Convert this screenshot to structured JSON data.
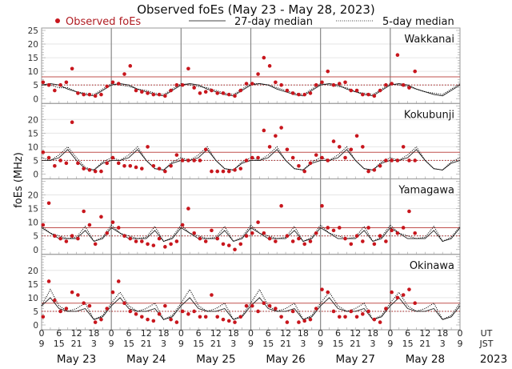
{
  "chart_data": {
    "type": "scatter",
    "title": "Observed foEs (May 23 - May 28, 2023)",
    "ylabel": "foEs (MHz)",
    "ylim": [
      0,
      25
    ],
    "yticks": [
      0,
      5,
      10,
      15,
      20,
      25
    ],
    "legend": {
      "placement": "top",
      "observed": "Observed foEs",
      "median27": "27-day median",
      "median5": "5-day median"
    },
    "colors": {
      "observed": "#c8161d",
      "threshold": "#c0504d",
      "median": "#000000"
    },
    "x_unit": "hours UT since May 23 00:00",
    "observed_interval_hours": 2,
    "median_interval_hours": 3,
    "ut_ticks": [
      "0",
      "6",
      "12",
      "18"
    ],
    "jst_ticks": [
      "9",
      "15",
      "21",
      "3"
    ],
    "ut_label": "UT",
    "jst_label": "JST",
    "days": [
      "May 23",
      "May 24",
      "May 25",
      "May 26",
      "May 27",
      "May 28"
    ],
    "year": "2023",
    "thresholds": [
      8,
      5
    ],
    "stations": [
      {
        "name": "Wakkanai",
        "observed": [
          6,
          5,
          3,
          5,
          6,
          11,
          2,
          1.5,
          1.5,
          1,
          1.5,
          4.5,
          6,
          5.5,
          9,
          12,
          3,
          2.5,
          2,
          1.5,
          1.5,
          1,
          3,
          5,
          5,
          11,
          4,
          2,
          2.5,
          3,
          2,
          2,
          1.5,
          1,
          3,
          5.5,
          5.5,
          9,
          15,
          12,
          6,
          5,
          3,
          2,
          1.5,
          1.5,
          2,
          5,
          6,
          10,
          5,
          5.5,
          6,
          3,
          3,
          1.5,
          1.5,
          1,
          3,
          5,
          5.5,
          16,
          5,
          4,
          10,
          null,
          null,
          null,
          null,
          null,
          null,
          null
        ],
        "median_27day": [
          5,
          5.5,
          5,
          3.5,
          2.5,
          1.5,
          1,
          3,
          5,
          5.5,
          5,
          3.5,
          2.5,
          1.5,
          1,
          3,
          5,
          5.5,
          5,
          3.5,
          2.5,
          1.5,
          1,
          3,
          5,
          5.5,
          5,
          3.5,
          2.5,
          1.5,
          1,
          3,
          5,
          5.5,
          5,
          3.5,
          2.5,
          1.5,
          1,
          3,
          5,
          5.5,
          5,
          3.5,
          2.5,
          1.5,
          1,
          3,
          5
        ],
        "median_5day": [
          5,
          5,
          4,
          4,
          2.5,
          2,
          1.5,
          3.5,
          5.5,
          5,
          4.5,
          3.5,
          3,
          2,
          1.5,
          3.5,
          5.5,
          5,
          4.5,
          4,
          3,
          2,
          1.5,
          3.5,
          5.5,
          5.5,
          5,
          4,
          3,
          2,
          1.5,
          3.5,
          5.5,
          5,
          4.5,
          4,
          2.5,
          2,
          1.5,
          3.5,
          5.5,
          5,
          4.5,
          3.5,
          2.5,
          2,
          1.5,
          3.5,
          5.5
        ]
      },
      {
        "name": "Kokubunji",
        "observed": [
          8,
          6,
          3,
          5,
          4,
          19,
          4,
          2,
          1.5,
          1,
          1,
          4,
          6,
          4,
          3,
          3,
          2.5,
          2,
          10,
          3,
          2,
          1,
          3,
          7,
          5,
          5,
          5,
          5,
          9,
          1,
          1,
          1,
          1,
          1.5,
          2,
          5,
          6,
          6,
          16,
          10,
          14,
          17,
          9,
          6,
          3,
          1,
          4,
          7,
          6,
          5,
          12,
          10,
          6,
          9,
          14,
          10,
          1,
          1.5,
          3,
          5,
          5,
          5,
          10,
          5,
          5,
          null,
          null,
          null,
          null,
          null,
          null,
          null
        ],
        "median_27day": [
          5,
          5,
          6,
          9,
          5,
          2,
          1.5,
          4,
          5,
          5,
          6,
          9,
          5,
          2,
          1.5,
          4,
          5,
          5,
          6,
          9,
          5,
          2,
          1.5,
          4,
          5,
          5,
          6,
          9,
          5,
          2,
          1.5,
          4,
          5,
          5,
          6,
          9,
          5,
          2,
          1.5,
          4,
          5,
          5,
          6,
          9,
          5,
          2,
          1.5,
          4,
          5
        ],
        "median_5day": [
          6,
          5,
          7,
          10,
          6,
          2.5,
          1.5,
          4.5,
          6,
          5,
          7,
          10,
          5,
          2,
          1.5,
          4.5,
          6,
          5,
          7,
          10,
          5,
          2,
          1.5,
          4.5,
          6,
          5,
          7,
          10,
          5,
          2,
          1.5,
          4.5,
          6,
          5,
          7,
          10,
          5,
          2,
          1.5,
          4.5,
          6,
          5,
          7,
          10,
          5,
          2,
          1.5,
          4.5,
          6
        ]
      },
      {
        "name": "Yamagawa",
        "observed": [
          9,
          17,
          5,
          4,
          3,
          5,
          4,
          14,
          9,
          2,
          12,
          6,
          10,
          8,
          5,
          4,
          3,
          3,
          2,
          1.5,
          4,
          1,
          2,
          3,
          9,
          15,
          6,
          4,
          3,
          7,
          4,
          2,
          1.5,
          0,
          2,
          5,
          6,
          10,
          6,
          4,
          3,
          16,
          5,
          3,
          4,
          2,
          3,
          6,
          16,
          8,
          7,
          8,
          4,
          2,
          5,
          3,
          8,
          2,
          5,
          3,
          7,
          6,
          8,
          14,
          6,
          null,
          null,
          null,
          null,
          null,
          null,
          null
        ],
        "median_27day": [
          8,
          6,
          4,
          4,
          4,
          7,
          3,
          4,
          8,
          6,
          4,
          4,
          4,
          7,
          3,
          4,
          8,
          6,
          4,
          4,
          4,
          7,
          3,
          4,
          8,
          6,
          4,
          4,
          4,
          7,
          3,
          4,
          8,
          6,
          4,
          4,
          4,
          7,
          3,
          4,
          8,
          6,
          4,
          4,
          4,
          7,
          3,
          4,
          8
        ],
        "median_5day": [
          8.5,
          6,
          5,
          4,
          4.5,
          8.5,
          3,
          4.5,
          9,
          6,
          5,
          4,
          4.5,
          8.5,
          3,
          4.5,
          9,
          6,
          5,
          4,
          4.5,
          8.5,
          3,
          4.5,
          9,
          6,
          5,
          4,
          4.5,
          8.5,
          3,
          4.5,
          9,
          6,
          5,
          4,
          4.5,
          8.5,
          3,
          4.5,
          9,
          6,
          5,
          4,
          4.5,
          8.5,
          3,
          4.5,
          8.5
        ]
      },
      {
        "name": "Okinawa",
        "observed": [
          3,
          16,
          9,
          5,
          6,
          12,
          11,
          8,
          7,
          1,
          2,
          6,
          12,
          16,
          8,
          5,
          4,
          3,
          2,
          1.5,
          4,
          7,
          2,
          1,
          5,
          4,
          5,
          3,
          3,
          11,
          3,
          2,
          1.5,
          1,
          3,
          7,
          7,
          5,
          8,
          7,
          6,
          3,
          1,
          5,
          1,
          1.5,
          2,
          6,
          13,
          12,
          5,
          3,
          3,
          5,
          3,
          4,
          5,
          2,
          1,
          6,
          12,
          10,
          11,
          13,
          8,
          null,
          null,
          null,
          null,
          null,
          null,
          null
        ],
        "median_27day": [
          7,
          10,
          6,
          5,
          5,
          6,
          2,
          3,
          7,
          10,
          6,
          5,
          5,
          6,
          2,
          3,
          7,
          10,
          6,
          5,
          5,
          6,
          2,
          3,
          7,
          10,
          6,
          5,
          5,
          6,
          2,
          3,
          7,
          10,
          6,
          5,
          5,
          6,
          2,
          3,
          7,
          10,
          6,
          5,
          5,
          6,
          2,
          3,
          7
        ],
        "median_5day": [
          7,
          13,
          7,
          5,
          6,
          8,
          2,
          3.5,
          8,
          12,
          7,
          5,
          6,
          8,
          2,
          3.5,
          8,
          13,
          7,
          5,
          6,
          8,
          2,
          3.5,
          8,
          13,
          7,
          5,
          6,
          8,
          2,
          3.5,
          8,
          12,
          7,
          5,
          6,
          8,
          2,
          3.5,
          8,
          12,
          7,
          5,
          6,
          8,
          2,
          3.5,
          8
        ]
      }
    ]
  }
}
